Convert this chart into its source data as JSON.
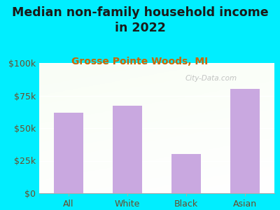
{
  "title": "Median non-family household income\nin 2022",
  "subtitle": "Grosse Pointe Woods, MI",
  "categories": [
    "All",
    "White",
    "Black",
    "Asian"
  ],
  "values": [
    62000,
    67000,
    30000,
    80000
  ],
  "bar_color": "#c9a8e0",
  "title_fontsize": 12.5,
  "subtitle_fontsize": 10,
  "subtitle_color": "#cc6600",
  "background_color": "#00eeff",
  "tick_color": "#6b4c2a",
  "watermark": "City-Data.com",
  "ylim": [
    0,
    100000
  ],
  "yticks": [
    0,
    25000,
    50000,
    75000,
    100000
  ]
}
